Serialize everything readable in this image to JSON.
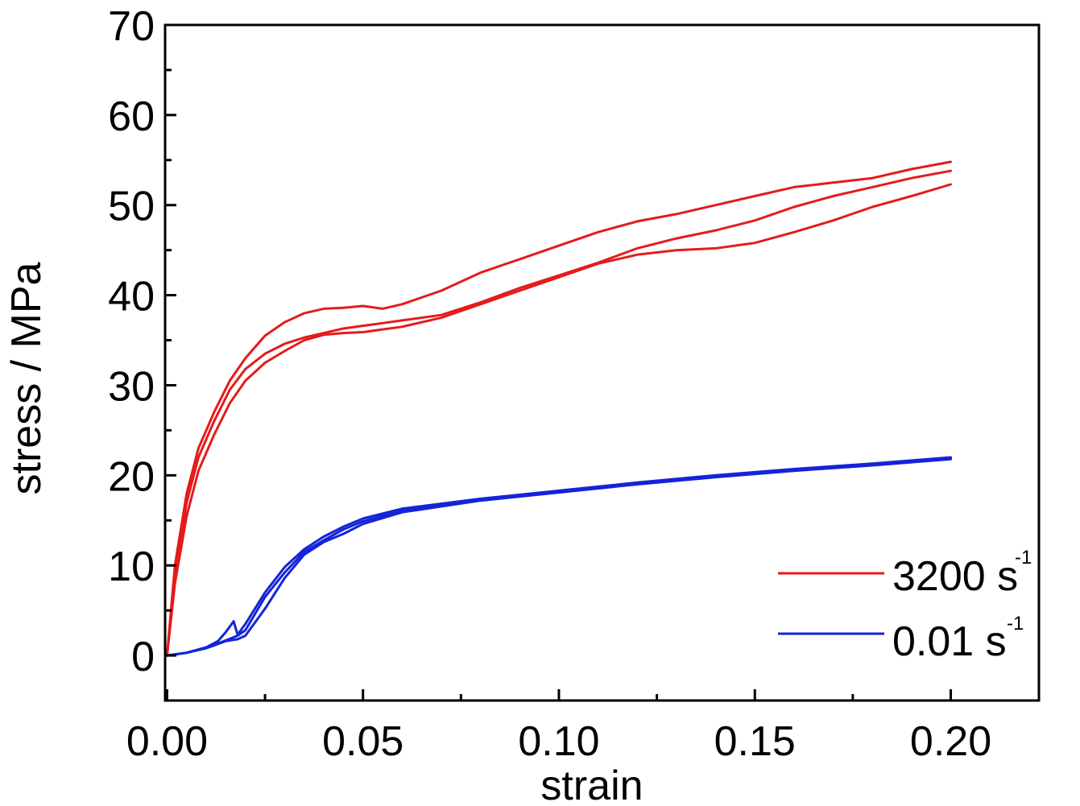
{
  "chart_data": {
    "type": "line",
    "xlabel": "strain",
    "ylabel": "stress / MPa",
    "xlim": [
      -0.0005,
      0.2225
    ],
    "ylim": [
      -5,
      70
    ],
    "xticks": [
      "0.00",
      "0.05",
      "0.10",
      "0.15",
      "0.20"
    ],
    "yticks": [
      "0",
      "10",
      "20",
      "30",
      "40",
      "50",
      "60",
      "70"
    ],
    "grid": false,
    "legend_position": "bottom-right",
    "legend": [
      {
        "label": "3200 s",
        "sup": "-1",
        "color": "#e51b1b"
      },
      {
        "label": "0.01 s",
        "sup": "-1",
        "color": "#1424d8"
      }
    ],
    "series": [
      {
        "group": "3200 s-1",
        "color": "#e51b1b",
        "x": [
          0.0,
          0.002,
          0.005,
          0.008,
          0.012,
          0.016,
          0.02,
          0.025,
          0.03,
          0.035,
          0.04,
          0.045,
          0.05,
          0.055,
          0.06,
          0.07,
          0.08,
          0.09,
          0.1,
          0.11,
          0.12,
          0.13,
          0.14,
          0.15,
          0.16,
          0.17,
          0.18,
          0.19,
          0.2
        ],
        "y": [
          0,
          10,
          18,
          23,
          27,
          30.5,
          33,
          35.5,
          37,
          38,
          38.5,
          38.6,
          38.8,
          38.5,
          39,
          40.5,
          42.5,
          44,
          45.5,
          47,
          48.2,
          49,
          50,
          51,
          52,
          52.5,
          53,
          54,
          54.8
        ]
      },
      {
        "group": "3200 s-1",
        "color": "#e51b1b",
        "x": [
          0.0,
          0.002,
          0.005,
          0.008,
          0.012,
          0.016,
          0.02,
          0.025,
          0.03,
          0.035,
          0.04,
          0.045,
          0.05,
          0.055,
          0.06,
          0.07,
          0.08,
          0.09,
          0.1,
          0.11,
          0.12,
          0.13,
          0.14,
          0.15,
          0.16,
          0.17,
          0.18,
          0.19,
          0.2
        ],
        "y": [
          0,
          9,
          17,
          22,
          26,
          29.5,
          31.8,
          33.5,
          34.6,
          35.3,
          35.8,
          36.3,
          36.6,
          36.9,
          37.2,
          37.8,
          39.2,
          40.8,
          42.2,
          43.6,
          45.2,
          46.3,
          47.2,
          48.3,
          49.8,
          51,
          52,
          53,
          53.8
        ]
      },
      {
        "group": "3200 s-1",
        "color": "#e51b1b",
        "x": [
          0.0,
          0.002,
          0.005,
          0.008,
          0.012,
          0.016,
          0.02,
          0.025,
          0.03,
          0.035,
          0.04,
          0.045,
          0.05,
          0.055,
          0.06,
          0.07,
          0.08,
          0.09,
          0.1,
          0.11,
          0.12,
          0.13,
          0.14,
          0.15,
          0.16,
          0.17,
          0.18,
          0.19,
          0.2
        ],
        "y": [
          0,
          8,
          15.5,
          20.5,
          24.5,
          28,
          30.5,
          32.5,
          33.8,
          35,
          35.6,
          35.8,
          35.9,
          36.2,
          36.5,
          37.5,
          39,
          40.5,
          42,
          43.5,
          44.5,
          45,
          45.2,
          45.8,
          47,
          48.3,
          49.8,
          51,
          52.3
        ]
      },
      {
        "group": "0.01 s-1",
        "color": "#1424d8",
        "x": [
          0.0,
          0.005,
          0.01,
          0.013,
          0.015,
          0.017,
          0.018,
          0.02,
          0.025,
          0.03,
          0.035,
          0.04,
          0.045,
          0.05,
          0.06,
          0.08,
          0.1,
          0.12,
          0.14,
          0.16,
          0.18,
          0.2
        ],
        "y": [
          0,
          0.3,
          0.9,
          1.6,
          2.6,
          3.8,
          2.3,
          3.5,
          7,
          9.8,
          11.8,
          13.2,
          14.3,
          15.2,
          16.3,
          17.4,
          18.3,
          19.2,
          20.0,
          20.7,
          21.3,
          22.0
        ]
      },
      {
        "group": "0.01 s-1",
        "color": "#1424d8",
        "x": [
          0.0,
          0.005,
          0.01,
          0.014,
          0.018,
          0.02,
          0.025,
          0.03,
          0.035,
          0.04,
          0.045,
          0.05,
          0.06,
          0.08,
          0.1,
          0.12,
          0.14,
          0.16,
          0.18,
          0.2
        ],
        "y": [
          0,
          0.3,
          0.9,
          1.5,
          2.2,
          2.8,
          6.5,
          9.2,
          11.5,
          12.8,
          14.0,
          14.9,
          16.1,
          17.3,
          18.2,
          19.1,
          19.9,
          20.6,
          21.2,
          21.9
        ]
      },
      {
        "group": "0.01 s-1",
        "color": "#1424d8",
        "x": [
          0.0,
          0.005,
          0.01,
          0.015,
          0.018,
          0.02,
          0.025,
          0.03,
          0.035,
          0.04,
          0.045,
          0.05,
          0.06,
          0.08,
          0.1,
          0.12,
          0.14,
          0.16,
          0.18,
          0.2
        ],
        "y": [
          0,
          0.3,
          0.8,
          1.6,
          1.8,
          2.2,
          5.2,
          8.6,
          11.2,
          12.6,
          13.5,
          14.6,
          15.9,
          17.2,
          18.1,
          19.0,
          19.8,
          20.5,
          21.1,
          21.8
        ]
      }
    ]
  }
}
